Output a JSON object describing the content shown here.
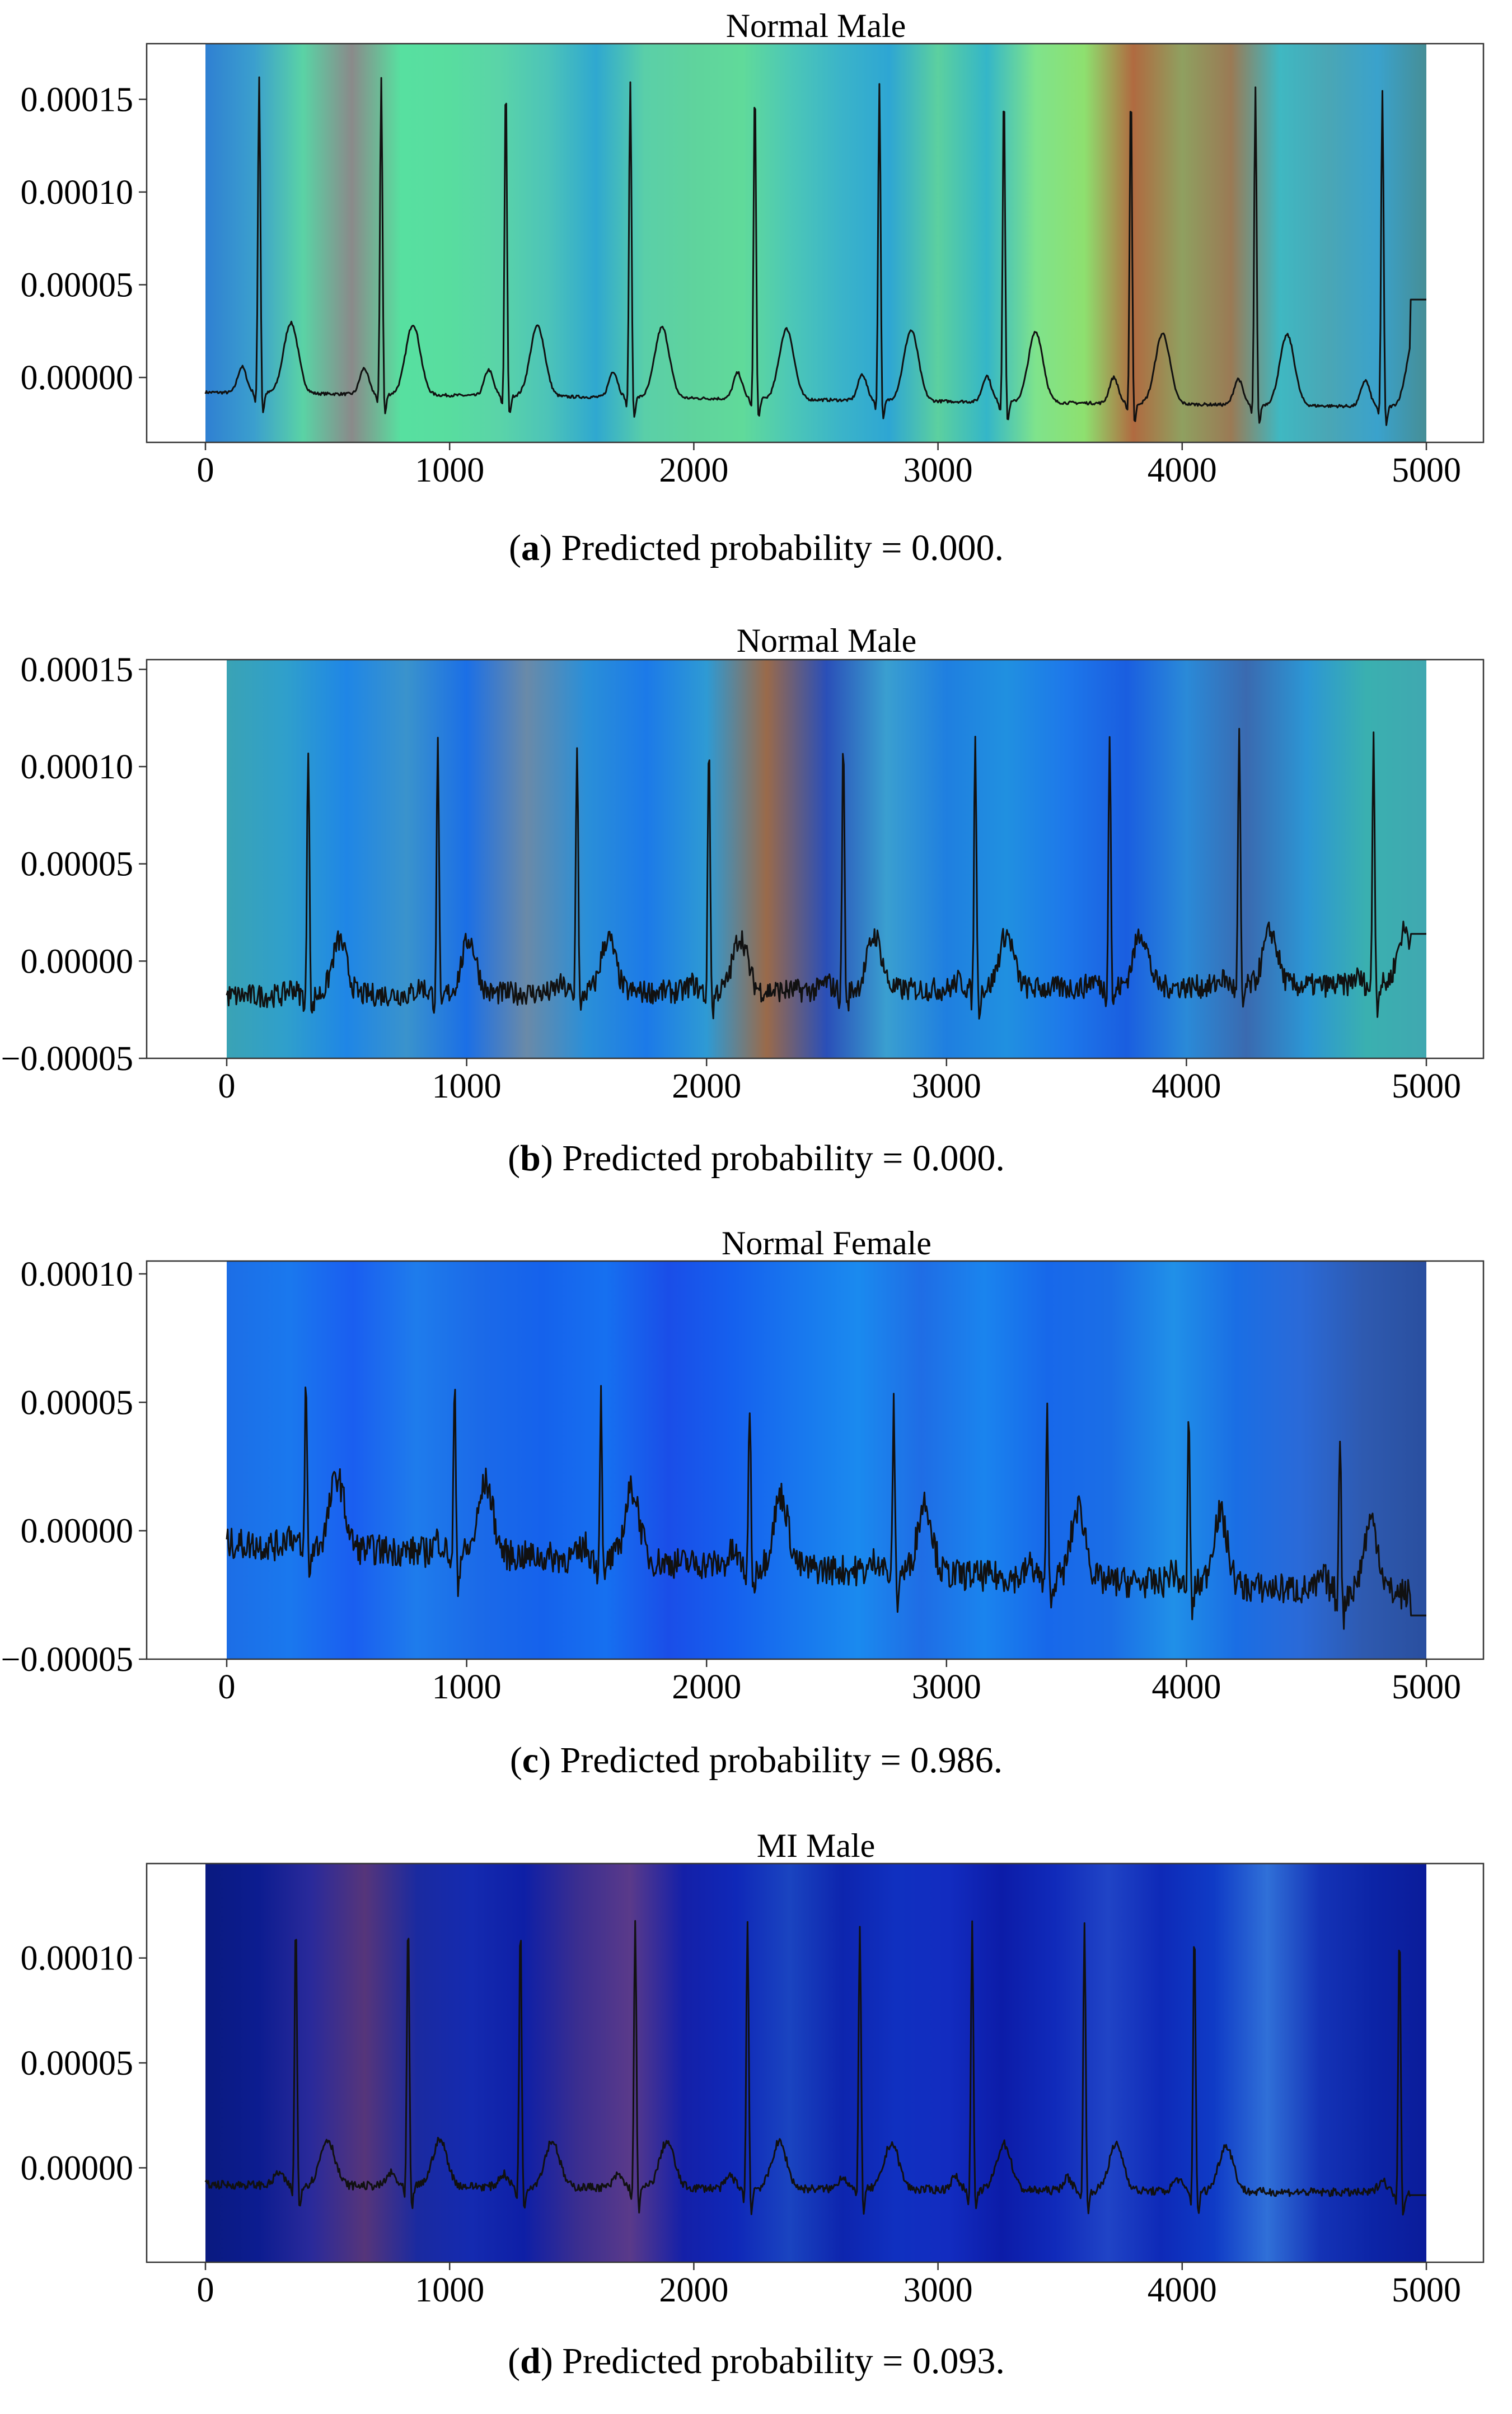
{
  "figure_type": "ECG heatmap overlay panels",
  "chart_data": [
    {
      "type": "line",
      "panel": "a",
      "title": "Normal Male",
      "caption": {
        "letter": "a",
        "text": " Predicted probability = 0.000."
      },
      "xlim": [
        0,
        5000
      ],
      "x_ticks": [
        0,
        1000,
        2000,
        3000,
        4000,
        5000
      ],
      "x_tick_labels": [
        "0",
        "1000",
        "2000",
        "3000",
        "4000",
        "5000"
      ],
      "ylim": [
        -3.5e-05,
        0.00018
      ],
      "y_ticks": [
        0.0,
        5e-05,
        0.0001,
        0.00015
      ],
      "y_tick_labels": [
        "0.00000",
        "0.00005",
        "0.00010",
        "0.00015"
      ],
      "series": [
        {
          "name": "ECG",
          "beats_x": [
            220,
            720,
            1230,
            1740,
            2250,
            2760,
            3270,
            3790,
            4300,
            4820
          ],
          "r_peak": 0.000172,
          "t_wave": 3.8e-05,
          "p_wave": 1.4e-05,
          "baseline_start": -8e-06,
          "baseline_end": -1.6e-05,
          "end_level": 4.2e-05,
          "noise": 8e-07
        }
      ],
      "heatmap_colors": [
        "#2f80d2",
        "#3b9fce",
        "#5ad3a5",
        "#8a8a8a",
        "#57e0a0",
        "#58dd9f",
        "#5ad4a8",
        "#4dc4b8",
        "#2fa8d0",
        "#5acfa8",
        "#5fd39d",
        "#60da9a",
        "#4cc7b7",
        "#3bb4c9",
        "#2ea6d3",
        "#5cd09f",
        "#34b6c8",
        "#7fe38c",
        "#8ee06f",
        "#b06a40",
        "#8fa060",
        "#9a7a55",
        "#3fb8c2",
        "#4aa6b5",
        "#3aa2cc",
        "#468e96"
      ]
    },
    {
      "type": "line",
      "panel": "b",
      "title": "Normal Male",
      "caption": {
        "letter": "b",
        "text": " Predicted probability = 0.000."
      },
      "xlim": [
        0,
        5000
      ],
      "x_ticks": [
        0,
        1000,
        2000,
        3000,
        4000,
        5000
      ],
      "x_tick_labels": [
        "0",
        "1000",
        "2000",
        "3000",
        "4000",
        "5000"
      ],
      "ylim": [
        -5e-05,
        0.000155
      ],
      "y_ticks": [
        -5e-05,
        0.0,
        5e-05,
        0.0001,
        0.00015
      ],
      "y_tick_labels": [
        "−0.00005",
        "0.00000",
        "0.00005",
        "0.00010",
        "0.00015"
      ],
      "series": [
        {
          "name": "ECG",
          "beats_x": [
            340,
            880,
            1460,
            2010,
            2570,
            3120,
            3680,
            4220,
            4780
          ],
          "r_peak": 0.00013,
          "t_wave": 2.8e-05,
          "p_wave": 4e-06,
          "baseline_start": -1.8e-05,
          "baseline_end": -1.2e-05,
          "end_level": 1.4e-05,
          "noise": 6e-06
        }
      ],
      "heatmap_colors": [
        "#3aa3b5",
        "#2f9fcc",
        "#1f86e6",
        "#3a93cc",
        "#1b6fe6",
        "#6a8aa8",
        "#2a8fd8",
        "#1c7ae8",
        "#2e9ad4",
        "#9a6a4a",
        "#2a4fb8",
        "#3a9fd0",
        "#1f7fe0",
        "#2090e0",
        "#1d78ea",
        "#1a5ee0",
        "#2a8ad8",
        "#3a6ab0",
        "#2c96d4",
        "#3ab0b0",
        "#40a8b0"
      ]
    },
    {
      "type": "line",
      "panel": "c",
      "title": "Normal Female",
      "caption": {
        "letter": "c",
        "text": " Predicted probability = 0.986."
      },
      "xlim": [
        0,
        5000
      ],
      "x_ticks": [
        0,
        1000,
        2000,
        3000,
        4000,
        5000
      ],
      "x_tick_labels": [
        "0",
        "1000",
        "2000",
        "3000",
        "4000",
        "5000"
      ],
      "ylim": [
        -5e-05,
        0.000105
      ],
      "y_ticks": [
        -5e-05,
        0.0,
        5e-05,
        0.0001
      ],
      "y_tick_labels": [
        "−0.00005",
        "0.00000",
        "0.00005",
        "0.00010"
      ],
      "series": [
        {
          "name": "ECG",
          "beats_x": [
            330,
            950,
            1560,
            2180,
            2780,
            3420,
            4010,
            4640
          ],
          "r_peak": 6.5e-05,
          "t_wave": 2.8e-05,
          "p_wave": 5e-06,
          "baseline_start": -5e-06,
          "baseline_end": -2.5e-05,
          "end_level": -3.3e-05,
          "noise": 6e-06
        }
      ],
      "heatmap_colors": [
        "#1c6ee6",
        "#1a78ee",
        "#1a5ef0",
        "#1e7cec",
        "#1b6ae8",
        "#1562ec",
        "#1670f0",
        "#1a4ee8",
        "#1560ee",
        "#1876ee",
        "#1a8aef",
        "#1f6de5",
        "#1a84ee",
        "#1768ea",
        "#1b6ee6",
        "#2090e8",
        "#1a6ee4",
        "#2a6ad8",
        "#2e5ab0",
        "#2a4f9f"
      ]
    },
    {
      "type": "line",
      "panel": "d",
      "title": "MI Male",
      "caption": {
        "letter": "d",
        "text": " Predicted probability = 0.093."
      },
      "xlim": [
        0,
        5000
      ],
      "x_ticks": [
        0,
        1000,
        2000,
        3000,
        4000,
        5000
      ],
      "x_tick_labels": [
        "0",
        "1000",
        "2000",
        "3000",
        "4000",
        "5000"
      ],
      "ylim": [
        -4.5e-05,
        0.000145
      ],
      "y_ticks": [
        0.0,
        5e-05,
        0.0001
      ],
      "y_tick_labels": [
        "0.00000",
        "0.00005",
        "0.00010"
      ],
      "series": [
        {
          "name": "ECG",
          "beats_x": [
            370,
            830,
            1290,
            1760,
            2220,
            2680,
            3140,
            3600,
            4050,
            4890
          ],
          "r_peak": 0.000128,
          "t_wave": 2.2e-05,
          "p_wave": 6e-06,
          "baseline_start": -8e-06,
          "baseline_end": -1.2e-05,
          "end_level": -1.3e-05,
          "noise": 2e-06
        }
      ],
      "heatmap_colors": [
        "#0a1a80",
        "#0c1c90",
        "#2a2a9a",
        "#56357a",
        "#1a2aa0",
        "#142ab0",
        "#0e1fa6",
        "#3a2e90",
        "#5a3a8a",
        "#1420a8",
        "#0f28b8",
        "#1a44c0",
        "#0d25ae",
        "#1030c0",
        "#122cc0",
        "#0c1ca8",
        "#102aba",
        "#2044c6",
        "#0e2ab8",
        "#0f3bc6",
        "#3070d8",
        "#1433b6",
        "#0c24a6",
        "#0b1c9a"
      ]
    }
  ]
}
